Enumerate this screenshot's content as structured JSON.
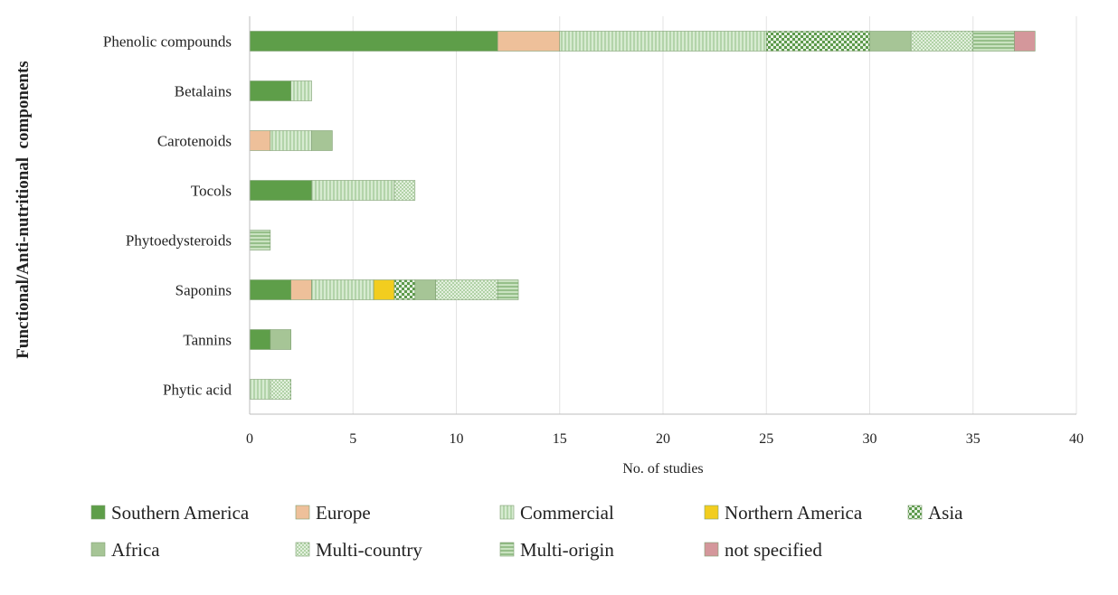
{
  "chart_data": {
    "type": "bar",
    "orientation": "horizontal",
    "stacked": true,
    "title": "",
    "xlabel": "No. of studies",
    "ylabel": "Functional/Anti-nutritional  components",
    "xlim": [
      0,
      40
    ],
    "xticks": [
      0,
      5,
      10,
      15,
      20,
      25,
      30,
      35,
      40
    ],
    "grid": true,
    "legend_position": "bottom",
    "categories": [
      "Phenolic compounds",
      "Betalains",
      "Carotenoids",
      "Tocols",
      "Phytoedysteroids",
      "Saponins",
      "Tannins",
      "Phytic acid"
    ],
    "series": [
      {
        "name": "Southern America",
        "color": "#5e9e49",
        "pattern": "solid",
        "values": [
          12,
          2,
          0,
          3,
          0,
          2,
          1,
          0
        ]
      },
      {
        "name": "Europe",
        "color": "#eec09a",
        "pattern": "solid",
        "values": [
          3,
          0,
          1,
          0,
          0,
          1,
          0,
          0
        ]
      },
      {
        "name": "Commercial",
        "color": "#cfe5c9",
        "pattern": "vertical-lines",
        "values": [
          10,
          1,
          2,
          4,
          0,
          3,
          0,
          1
        ]
      },
      {
        "name": "Northern America",
        "color": "#f2cd1f",
        "pattern": "solid",
        "values": [
          0,
          0,
          0,
          0,
          0,
          1,
          0,
          0
        ]
      },
      {
        "name": "Asia",
        "color": "#8cc07f",
        "pattern": "checker",
        "values": [
          5,
          0,
          0,
          0,
          0,
          1,
          0,
          0
        ]
      },
      {
        "name": "Africa",
        "color": "#a6c596",
        "pattern": "solid",
        "values": [
          2,
          0,
          1,
          0,
          0,
          1,
          1,
          0
        ]
      },
      {
        "name": "Multi-country",
        "color": "#d6e9cf",
        "pattern": "dots",
        "values": [
          3,
          0,
          0,
          1,
          0,
          3,
          0,
          1
        ]
      },
      {
        "name": "Multi-origin",
        "color": "#b8d8ad",
        "pattern": "horizontal-lines",
        "values": [
          2,
          0,
          0,
          0,
          1,
          1,
          0,
          0
        ]
      },
      {
        "name": "not specified",
        "color": "#d4979b",
        "pattern": "solid",
        "values": [
          1,
          0,
          0,
          0,
          0,
          0,
          0,
          0
        ]
      }
    ]
  }
}
